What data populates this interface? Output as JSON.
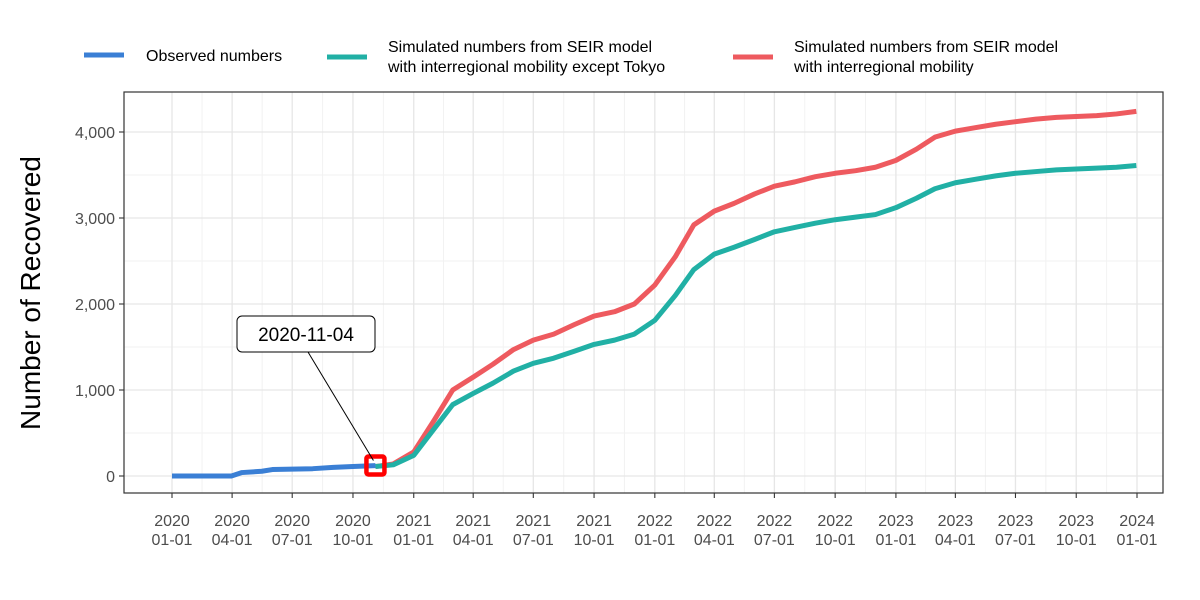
{
  "chart_data": {
    "type": "line",
    "title": "",
    "xlabel": "",
    "ylabel": "Number of Recovered",
    "x_domain": [
      "2020-01-01",
      "2024-01-01"
    ],
    "ylim": [
      -200,
      4700
    ],
    "grid": true,
    "legend_position": "top",
    "y_ticks": [
      {
        "value": 0,
        "label": "0"
      },
      {
        "value": 1000,
        "label": "1,000"
      },
      {
        "value": 2000,
        "label": "2,000"
      },
      {
        "value": 3000,
        "label": "3,000"
      },
      {
        "value": 4000,
        "label": "4,000"
      }
    ],
    "x_ticks": [
      {
        "date": "2020-01-01",
        "line1": "2020",
        "line2": "01-01"
      },
      {
        "date": "2020-04-01",
        "line1": "2020",
        "line2": "04-01"
      },
      {
        "date": "2020-07-01",
        "line1": "2020",
        "line2": "07-01"
      },
      {
        "date": "2020-10-01",
        "line1": "2020",
        "line2": "10-01"
      },
      {
        "date": "2021-01-01",
        "line1": "2021",
        "line2": "01-01"
      },
      {
        "date": "2021-04-01",
        "line1": "2021",
        "line2": "04-01"
      },
      {
        "date": "2021-07-01",
        "line1": "2021",
        "line2": "07-01"
      },
      {
        "date": "2021-10-01",
        "line1": "2021",
        "line2": "10-01"
      },
      {
        "date": "2022-01-01",
        "line1": "2022",
        "line2": "01-01"
      },
      {
        "date": "2022-04-01",
        "line1": "2022",
        "line2": "04-01"
      },
      {
        "date": "2022-07-01",
        "line1": "2022",
        "line2": "07-01"
      },
      {
        "date": "2022-10-01",
        "line1": "2022",
        "line2": "10-01"
      },
      {
        "date": "2023-01-01",
        "line1": "2023",
        "line2": "01-01"
      },
      {
        "date": "2023-04-01",
        "line1": "2023",
        "line2": "04-01"
      },
      {
        "date": "2023-07-01",
        "line1": "2023",
        "line2": "07-01"
      },
      {
        "date": "2023-10-01",
        "line1": "2023",
        "line2": "10-01"
      },
      {
        "date": "2024-01-01",
        "line1": "2024",
        "line2": "01-01"
      }
    ],
    "series": [
      {
        "name": "Observed numbers",
        "color": "#3a7fd5",
        "points": [
          {
            "x": "2020-01-01",
            "y": 0
          },
          {
            "x": "2020-03-31",
            "y": 0
          },
          {
            "x": "2020-04-16",
            "y": 40
          },
          {
            "x": "2020-05-16",
            "y": 55
          },
          {
            "x": "2020-06-01",
            "y": 75
          },
          {
            "x": "2020-07-01",
            "y": 80
          },
          {
            "x": "2020-08-01",
            "y": 85
          },
          {
            "x": "2020-09-01",
            "y": 100
          },
          {
            "x": "2020-10-01",
            "y": 110
          },
          {
            "x": "2020-11-04",
            "y": 120
          }
        ]
      },
      {
        "name": "Simulated numbers from SEIR model\nwith interregional mobility except Tokyo",
        "color": "#21b0a5",
        "points": [
          {
            "x": "2020-11-04",
            "y": 110
          },
          {
            "x": "2020-12-01",
            "y": 130
          },
          {
            "x": "2021-01-01",
            "y": 240
          },
          {
            "x": "2021-02-01",
            "y": 550
          },
          {
            "x": "2021-03-01",
            "y": 830
          },
          {
            "x": "2021-04-01",
            "y": 960
          },
          {
            "x": "2021-05-01",
            "y": 1080
          },
          {
            "x": "2021-06-01",
            "y": 1220
          },
          {
            "x": "2021-07-01",
            "y": 1310
          },
          {
            "x": "2021-08-01",
            "y": 1370
          },
          {
            "x": "2021-09-01",
            "y": 1450
          },
          {
            "x": "2021-10-01",
            "y": 1530
          },
          {
            "x": "2021-11-01",
            "y": 1580
          },
          {
            "x": "2021-12-01",
            "y": 1650
          },
          {
            "x": "2022-01-01",
            "y": 1810
          },
          {
            "x": "2022-02-01",
            "y": 2100
          },
          {
            "x": "2022-03-01",
            "y": 2400
          },
          {
            "x": "2022-04-01",
            "y": 2580
          },
          {
            "x": "2022-05-01",
            "y": 2660
          },
          {
            "x": "2022-06-01",
            "y": 2750
          },
          {
            "x": "2022-07-01",
            "y": 2840
          },
          {
            "x": "2022-08-01",
            "y": 2890
          },
          {
            "x": "2022-09-01",
            "y": 2940
          },
          {
            "x": "2022-10-01",
            "y": 2980
          },
          {
            "x": "2022-11-01",
            "y": 3010
          },
          {
            "x": "2022-12-01",
            "y": 3040
          },
          {
            "x": "2023-01-01",
            "y": 3120
          },
          {
            "x": "2023-02-01",
            "y": 3230
          },
          {
            "x": "2023-03-01",
            "y": 3340
          },
          {
            "x": "2023-04-01",
            "y": 3410
          },
          {
            "x": "2023-05-01",
            "y": 3450
          },
          {
            "x": "2023-06-01",
            "y": 3490
          },
          {
            "x": "2023-07-01",
            "y": 3520
          },
          {
            "x": "2023-08-01",
            "y": 3540
          },
          {
            "x": "2023-09-01",
            "y": 3560
          },
          {
            "x": "2023-10-01",
            "y": 3570
          },
          {
            "x": "2023-11-01",
            "y": 3580
          },
          {
            "x": "2023-12-01",
            "y": 3590
          },
          {
            "x": "2023-12-31",
            "y": 3610
          }
        ]
      },
      {
        "name": "Simulated numbers from SEIR model\nwith interregional mobility",
        "color": "#ee5a5f",
        "points": [
          {
            "x": "2020-11-04",
            "y": 110
          },
          {
            "x": "2020-12-01",
            "y": 140
          },
          {
            "x": "2021-01-01",
            "y": 280
          },
          {
            "x": "2021-02-01",
            "y": 650
          },
          {
            "x": "2021-03-01",
            "y": 1000
          },
          {
            "x": "2021-04-01",
            "y": 1150
          },
          {
            "x": "2021-05-01",
            "y": 1300
          },
          {
            "x": "2021-06-01",
            "y": 1470
          },
          {
            "x": "2021-07-01",
            "y": 1580
          },
          {
            "x": "2021-08-01",
            "y": 1650
          },
          {
            "x": "2021-09-01",
            "y": 1760
          },
          {
            "x": "2021-10-01",
            "y": 1860
          },
          {
            "x": "2021-11-01",
            "y": 1910
          },
          {
            "x": "2021-12-01",
            "y": 2000
          },
          {
            "x": "2022-01-01",
            "y": 2220
          },
          {
            "x": "2022-02-01",
            "y": 2550
          },
          {
            "x": "2022-03-01",
            "y": 2920
          },
          {
            "x": "2022-04-01",
            "y": 3080
          },
          {
            "x": "2022-05-01",
            "y": 3170
          },
          {
            "x": "2022-06-01",
            "y": 3280
          },
          {
            "x": "2022-07-01",
            "y": 3370
          },
          {
            "x": "2022-08-01",
            "y": 3420
          },
          {
            "x": "2022-09-01",
            "y": 3480
          },
          {
            "x": "2022-10-01",
            "y": 3520
          },
          {
            "x": "2022-11-01",
            "y": 3550
          },
          {
            "x": "2022-12-01",
            "y": 3590
          },
          {
            "x": "2023-01-01",
            "y": 3670
          },
          {
            "x": "2023-02-01",
            "y": 3800
          },
          {
            "x": "2023-03-01",
            "y": 3940
          },
          {
            "x": "2023-04-01",
            "y": 4010
          },
          {
            "x": "2023-05-01",
            "y": 4050
          },
          {
            "x": "2023-06-01",
            "y": 4090
          },
          {
            "x": "2023-07-01",
            "y": 4120
          },
          {
            "x": "2023-08-01",
            "y": 4150
          },
          {
            "x": "2023-09-01",
            "y": 4170
          },
          {
            "x": "2023-10-01",
            "y": 4180
          },
          {
            "x": "2023-11-01",
            "y": 4190
          },
          {
            "x": "2023-12-01",
            "y": 4210
          },
          {
            "x": "2023-12-31",
            "y": 4240
          }
        ]
      }
    ],
    "annotation": {
      "label": "2020-11-04",
      "x": "2020-11-04",
      "y": 110,
      "marker_color": "#ff0000"
    }
  }
}
